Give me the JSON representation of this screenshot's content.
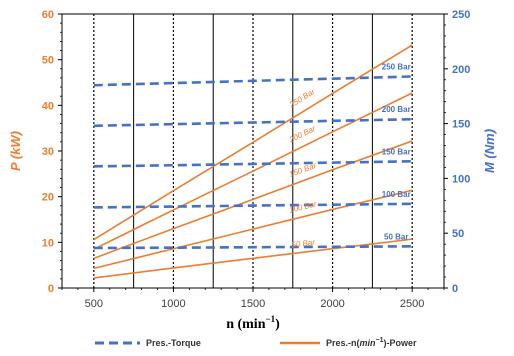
{
  "chart_data": {
    "type": "line",
    "x": [
      500,
      1000,
      1500,
      2000,
      2500
    ],
    "xlabel": "n (min",
    "xlabel_sup": "−1",
    "xlabel_close": ")",
    "xlim": [
      300,
      2700
    ],
    "x_ticks": [
      500,
      1000,
      1500,
      2000,
      2500
    ],
    "y_left": {
      "label": "P (kW)",
      "lim": [
        0,
        60
      ],
      "ticks": [
        0,
        10,
        20,
        30,
        40,
        50,
        60
      ],
      "color": "#ED7D31"
    },
    "y_right": {
      "label": "M (Nm)",
      "lim": [
        0,
        250
      ],
      "ticks": [
        0,
        50,
        100,
        150,
        200,
        250
      ],
      "color": "#4472C4"
    },
    "power_series": [
      {
        "label": "50 Bar",
        "values": [
          2.2,
          4.4,
          6.5,
          8.6,
          10.7
        ]
      },
      {
        "label": "100 Bar",
        "values": [
          4.3,
          8.6,
          12.9,
          17.2,
          21.4
        ]
      },
      {
        "label": "150 Bar",
        "values": [
          6.5,
          13.0,
          19.4,
          25.9,
          32.2
        ]
      },
      {
        "label": "200 Bar",
        "values": [
          8.5,
          17.1,
          25.6,
          34.2,
          42.7
        ]
      },
      {
        "label": "250 Bar",
        "values": [
          10.6,
          21.3,
          31.9,
          42.6,
          53.2
        ]
      }
    ],
    "torque_series": [
      {
        "label": "50 Bar",
        "values": [
          36.5,
          36.8,
          37.2,
          37.6,
          38.0
        ]
      },
      {
        "label": "100 Bar",
        "values": [
          73.5,
          74.3,
          75.2,
          76.0,
          76.8
        ]
      },
      {
        "label": "150 Bar",
        "values": [
          111.0,
          112.0,
          113.2,
          114.4,
          115.6
        ]
      },
      {
        "label": "200 Bar",
        "values": [
          148.0,
          149.5,
          151.0,
          152.5,
          154.0
        ]
      },
      {
        "label": "250 Bar",
        "values": [
          185.0,
          187.0,
          189.0,
          191.0,
          193.0
        ]
      }
    ],
    "vertical_lines": {
      "dotted": [
        500,
        1000,
        1500,
        2000,
        2500
      ],
      "solid": [
        750,
        1250,
        1750,
        2250
      ]
    },
    "grid": false,
    "legend": {
      "position": "bottom",
      "items": [
        {
          "label": "Pres.-Torque",
          "style": "dashed",
          "color": "#4472C4"
        },
        {
          "label_parts": [
            "Pres.-n(",
            "min",
            "−1",
            ")-Power"
          ],
          "style": "solid",
          "color": "#ED7D31"
        }
      ]
    }
  }
}
